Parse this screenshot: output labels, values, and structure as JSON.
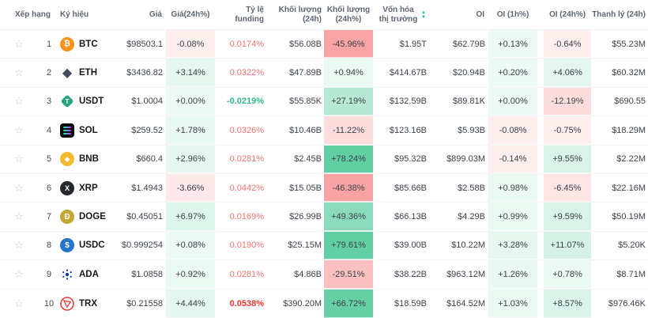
{
  "colors": {
    "positive_base": "#2ebd85",
    "negative_base": "#f25252",
    "funding_positive_text": "#f2736d",
    "funding_strong_text": "#f1342e",
    "funding_negative_text": "#2ebd85",
    "sort_caret": "#14aebc",
    "header_text": "#5d6670",
    "body_text": "#3c434b"
  },
  "icons": {
    "favorite": "☆",
    "sort_asc": "▲",
    "sort_desc": "▼"
  },
  "header": {
    "columns": {
      "rank": "Xếp hạng",
      "symbol": "Ký hiệu",
      "price": "Giá",
      "chg24": "Giá(24h%)",
      "funding": "Tỷ lệ funding",
      "vol": "Khối lượng (24h)",
      "vol_chg": "Khối lượng (24h%)",
      "mcap": "Vốn hóa thị trường",
      "oi": "OI",
      "oi1h": "OI (1h%)",
      "oi24": "OI (24h%)",
      "liq": "Thanh lý (24h)"
    }
  },
  "rows": [
    {
      "rank": "1",
      "symbol": "BTC",
      "icon": "btc-coin-icon",
      "price": "$98503.1",
      "chg24": "-0.08%",
      "funding": "0.0174%",
      "vol": "$56.08B",
      "vol_chg": "-45.96%",
      "mcap": "$1.95T",
      "oi": "$62.79B",
      "oi1h": "+0.13%",
      "oi24": "-0.64%",
      "liq": "$55.23M"
    },
    {
      "rank": "2",
      "symbol": "ETH",
      "icon": "eth-coin-icon",
      "price": "$3436.82",
      "chg24": "+3.14%",
      "funding": "0.0322%",
      "vol": "$47.89B",
      "vol_chg": "+0.94%",
      "mcap": "$414.67B",
      "oi": "$20.94B",
      "oi1h": "+0.20%",
      "oi24": "+4.06%",
      "liq": "$60.32M"
    },
    {
      "rank": "3",
      "symbol": "USDT",
      "icon": "usdt-coin-icon",
      "price": "$1.0004",
      "chg24": "+0.00%",
      "funding": "-0.0219%",
      "vol": "$55.85K",
      "vol_chg": "+27.19%",
      "mcap": "$132.59B",
      "oi": "$89.81K",
      "oi1h": "+0.00%",
      "oi24": "-12.19%",
      "liq": "$690.55"
    },
    {
      "rank": "4",
      "symbol": "SOL",
      "icon": "sol-coin-icon",
      "price": "$259.52",
      "chg24": "+1.78%",
      "funding": "0.0326%",
      "vol": "$10.46B",
      "vol_chg": "-11.22%",
      "mcap": "$123.16B",
      "oi": "$5.93B",
      "oi1h": "-0.08%",
      "oi24": "-0.75%",
      "liq": "$18.29M"
    },
    {
      "rank": "5",
      "symbol": "BNB",
      "icon": "bnb-coin-icon",
      "price": "$660.4",
      "chg24": "+2.96%",
      "funding": "0.0281%",
      "vol": "$2.45B",
      "vol_chg": "+78.24%",
      "mcap": "$95.32B",
      "oi": "$899.03M",
      "oi1h": "-0.14%",
      "oi24": "+9.55%",
      "liq": "$2.22M"
    },
    {
      "rank": "6",
      "symbol": "XRP",
      "icon": "xrp-coin-icon",
      "price": "$1.4943",
      "chg24": "-3.66%",
      "funding": "0.0442%",
      "vol": "$15.05B",
      "vol_chg": "-46.38%",
      "mcap": "$85.66B",
      "oi": "$2.58B",
      "oi1h": "+0.98%",
      "oi24": "-6.45%",
      "liq": "$22.16M"
    },
    {
      "rank": "7",
      "symbol": "DOGE",
      "icon": "doge-coin-icon",
      "price": "$0.45051",
      "chg24": "+6.97%",
      "funding": "0.0169%",
      "vol": "$26.99B",
      "vol_chg": "+49.36%",
      "mcap": "$66.13B",
      "oi": "$4.29B",
      "oi1h": "+0.99%",
      "oi24": "+9.59%",
      "liq": "$50.19M"
    },
    {
      "rank": "8",
      "symbol": "USDC",
      "icon": "usdc-coin-icon",
      "price": "$0.999254",
      "chg24": "+0.08%",
      "funding": "0.0190%",
      "vol": "$25.15M",
      "vol_chg": "+79.61%",
      "mcap": "$39.00B",
      "oi": "$10.22M",
      "oi1h": "+3.28%",
      "oi24": "+11.07%",
      "liq": "$5.20K"
    },
    {
      "rank": "9",
      "symbol": "ADA",
      "icon": "ada-coin-icon",
      "price": "$1.0858",
      "chg24": "+0.92%",
      "funding": "0.0281%",
      "vol": "$4.86B",
      "vol_chg": "-29.51%",
      "mcap": "$38.22B",
      "oi": "$963.12M",
      "oi1h": "+1.26%",
      "oi24": "+0.78%",
      "liq": "$8.71M"
    },
    {
      "rank": "10",
      "symbol": "TRX",
      "icon": "trx-coin-icon",
      "price": "$0.21558",
      "chg24": "+4.44%",
      "funding": "0.0538%",
      "vol": "$390.20M",
      "vol_chg": "+66.72%",
      "mcap": "$18.59B",
      "oi": "$164.52M",
      "oi1h": "+1.03%",
      "oi24": "+8.57%",
      "liq": "$976.46K"
    }
  ]
}
